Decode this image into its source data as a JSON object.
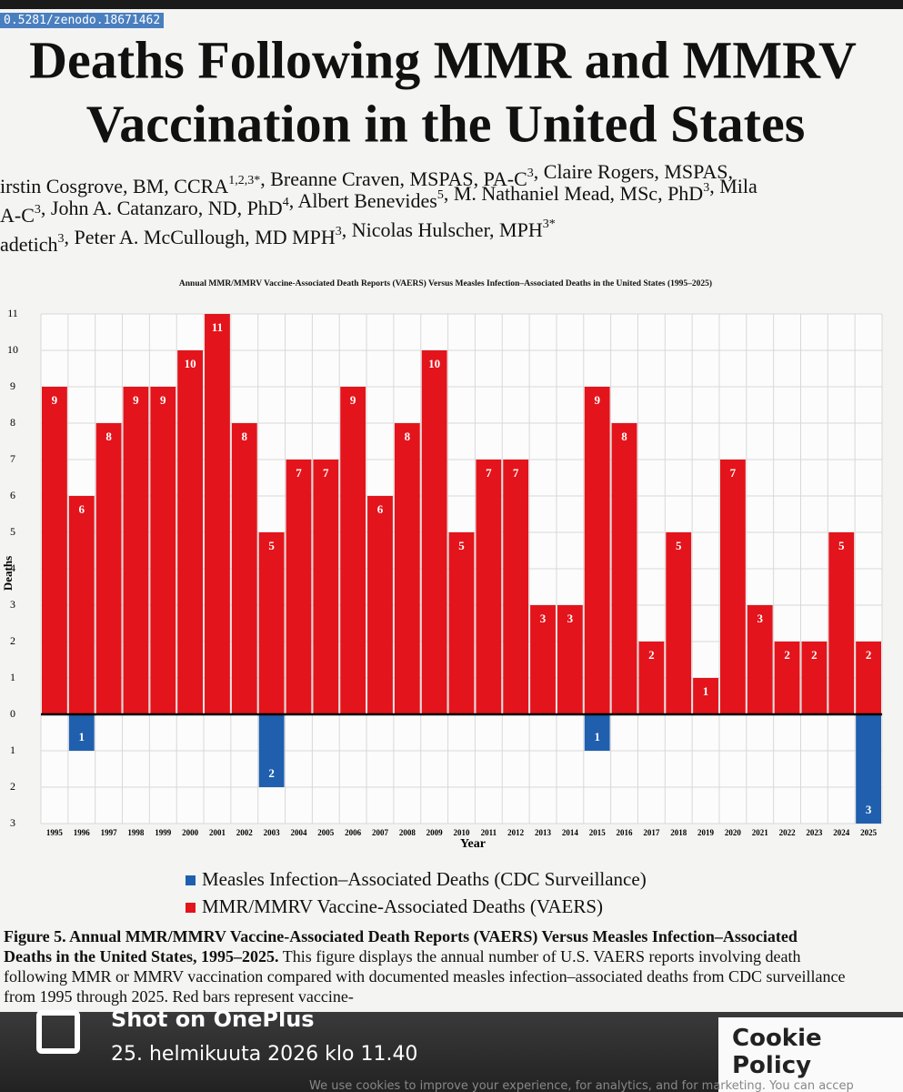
{
  "header": {
    "doi": "0.5281/zenodo.18671462",
    "title_lines": [
      "Deaths Following MMR and MMRV",
      "Vaccination in the United States"
    ],
    "author_lines": [
      [
        {
          "t": "irstin Cosgrove, BM, CCRA",
          "sup": "1,2,3*"
        },
        {
          "t": ", Breanne Craven, MSPAS, PA-C",
          "sup": "3"
        },
        {
          "t": ", Claire Rogers, MSPAS,"
        }
      ],
      [
        {
          "t": "A-C",
          "sup": "3"
        },
        {
          "t": ", John A. Catanzaro, ND, PhD",
          "sup": "4"
        },
        {
          "t": ", Albert Benevides",
          "sup": "5"
        },
        {
          "t": ", M. Nathaniel Mead, MSc, PhD",
          "sup": "3"
        },
        {
          "t": ", Mila"
        }
      ],
      [
        {
          "t": "adetich",
          "sup": "3"
        },
        {
          "t": ", Peter A. McCullough, MD MPH",
          "sup": "3"
        },
        {
          "t": ", Nicolas Hulscher, MPH",
          "sup": "3*"
        }
      ]
    ]
  },
  "chart_data": {
    "type": "bar",
    "title": "Annual MMR/MMRV Vaccine-Associated Death Reports (VAERS) Versus Measles Infection–Associated Deaths in the United States (1995–2025)",
    "x_label": "Year",
    "y_label": "Deaths",
    "categories": [
      "1995",
      "1996",
      "1997",
      "1998",
      "1999",
      "2000",
      "2001",
      "2002",
      "2003",
      "2004",
      "2005",
      "2006",
      "2007",
      "2008",
      "2009",
      "2010",
      "2011",
      "2012",
      "2013",
      "2014",
      "2015",
      "2016",
      "2017",
      "2018",
      "2019",
      "2020",
      "2021",
      "2022",
      "2023",
      "2024",
      "2025"
    ],
    "series": [
      {
        "name": "Measles Infection–Associated Deaths (CDC Surveillance)",
        "color": "#1f5fae",
        "values": [
          0,
          -1,
          0,
          0,
          0,
          0,
          0,
          0,
          -2,
          0,
          0,
          0,
          0,
          0,
          0,
          0,
          0,
          0,
          0,
          0,
          -1,
          0,
          0,
          0,
          0,
          0,
          0,
          0,
          0,
          0,
          -3
        ],
        "value_labels": [
          null,
          "1",
          null,
          null,
          null,
          null,
          null,
          null,
          "2",
          null,
          null,
          null,
          null,
          null,
          null,
          null,
          null,
          null,
          null,
          null,
          "1",
          null,
          null,
          null,
          null,
          null,
          null,
          null,
          null,
          null,
          "3"
        ]
      },
      {
        "name": "MMR/MMRV Vaccine-Associated Deaths (VAERS)",
        "color": "#e3141b",
        "values": [
          9,
          6,
          8,
          9,
          9,
          10,
          11,
          8,
          5,
          7,
          7,
          9,
          6,
          8,
          10,
          5,
          7,
          7,
          3,
          3,
          9,
          8,
          2,
          5,
          1,
          7,
          3,
          2,
          2,
          5,
          2
        ]
      }
    ],
    "ylim": [
      -3,
      11
    ],
    "yticks": [
      11,
      10,
      9,
      8,
      7,
      6,
      5,
      4,
      3,
      2,
      1,
      0,
      {
        "value": -1,
        "label": "1"
      },
      {
        "value": -2,
        "label": "2"
      },
      {
        "value": -3,
        "label": "3"
      }
    ],
    "grid": true,
    "legend": "bottom"
  },
  "caption": {
    "bold": "Figure 5. Annual MMR/MMRV Vaccine-Associated Death Reports (VAERS) Versus Measles Infection–Associated Deaths in the United States, 1995–2025.",
    "text": "This figure displays the annual number of U.S. VAERS reports involving death following MMR or MMRV vaccination compared with documented measles infection–associated deaths from CDC surveillance from 1995 through 2025. Red bars represent vaccine-"
  },
  "overlay": {
    "watermark": "Shot on OnePlus",
    "date": "25. helmikuuta 2026 klo 11.40",
    "cookie_title": "Cookie Policy",
    "cookie_text": "We use cookies to improve your experience, for analytics, and for marketing. You can accep"
  }
}
